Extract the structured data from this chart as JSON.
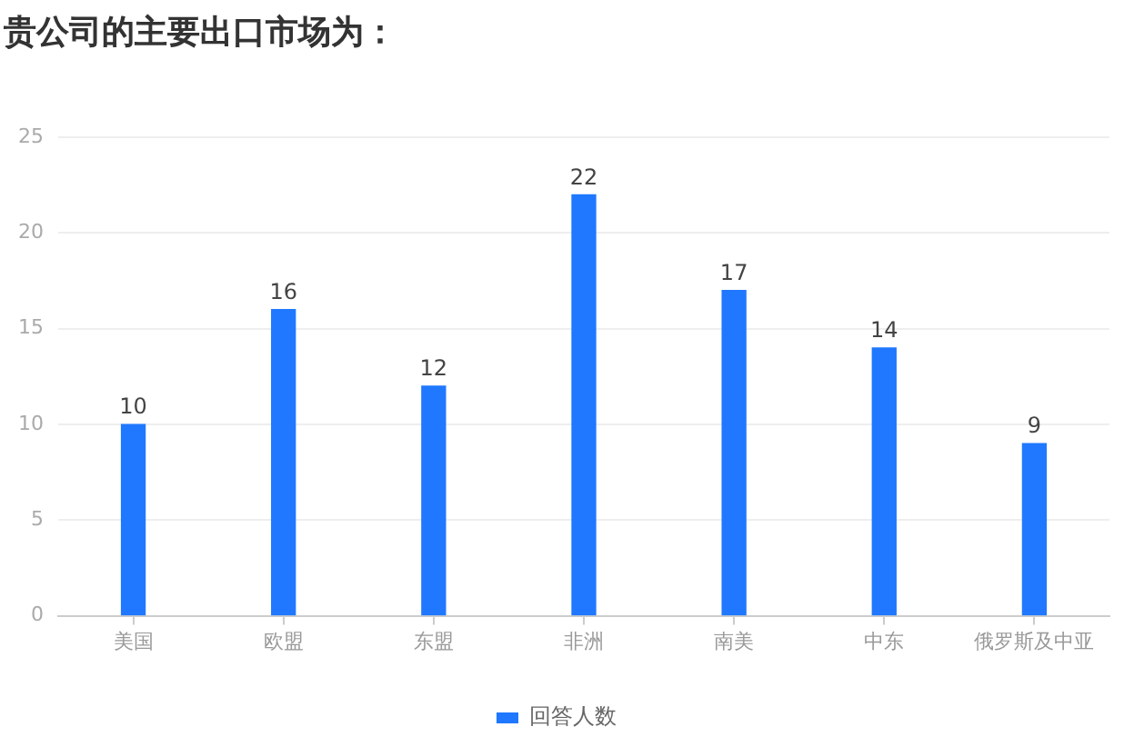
{
  "chart_data": {
    "type": "bar",
    "title": "贵公司的主要出口市场为：",
    "categories": [
      "美国",
      "欧盟",
      "东盟",
      "非洲",
      "南美",
      "中东",
      "俄罗斯及中亚"
    ],
    "series": [
      {
        "name": "回答人数",
        "color": "#1f78ff",
        "values": [
          10,
          16,
          12,
          22,
          17,
          14,
          9
        ]
      }
    ],
    "ylim": [
      0,
      25
    ],
    "yticks": [
      0,
      5,
      10,
      15,
      20,
      25
    ],
    "grid": "y",
    "legend": "bottom",
    "data_labels": true
  }
}
